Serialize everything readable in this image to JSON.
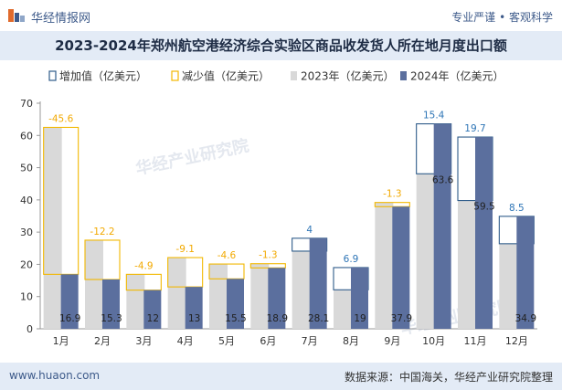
{
  "header": {
    "site_name": "华经情报网",
    "slogan": "专业严谨 • 客观科学"
  },
  "title": "2023-2024年郑州航空港经济综合实验区商品收发货人所在地月度出口额",
  "footer": {
    "url": "www.huaon.com",
    "source": "数据来源：中国海关，华经产业研究院整理"
  },
  "watermark": "华经产业研究院",
  "colors": {
    "increase": "#2f5c8a",
    "decrease": "#f2b800",
    "y2023": "#d9d9d9",
    "y2024": "#5b6f9e",
    "increase_label": "#2e75b6",
    "decrease_label": "#f2a900"
  },
  "chart_data": {
    "type": "bar",
    "categories": [
      "1月",
      "2月",
      "3月",
      "4月",
      "5月",
      "6月",
      "7月",
      "8月",
      "9月",
      "10月",
      "11月",
      "12月"
    ],
    "ylim": [
      0,
      70
    ],
    "yticks": [
      0,
      10,
      20,
      30,
      40,
      50,
      60,
      70
    ],
    "legend": [
      "增加值（亿美元）",
      "减少值（亿美元）",
      "2023年（亿美元）",
      "2024年（亿美元）"
    ],
    "legend_position": "top",
    "grid": false,
    "series": [
      {
        "name": "2023年（亿美元）",
        "values": [
          62.5,
          27.5,
          16.9,
          22.1,
          20.1,
          20.2,
          24.1,
          12.1,
          39.2,
          48.1,
          39.8,
          26.4
        ]
      },
      {
        "name": "2024年（亿美元）",
        "values": [
          16.9,
          15.3,
          12,
          13,
          15.5,
          18.9,
          28.1,
          19,
          37.9,
          63.6,
          59.5,
          34.9
        ]
      }
    ],
    "changes": [
      {
        "type": "decrease",
        "label": "-45.6"
      },
      {
        "type": "decrease",
        "label": "-12.2"
      },
      {
        "type": "decrease",
        "label": "-4.9"
      },
      {
        "type": "decrease",
        "label": "-9.1"
      },
      {
        "type": "decrease",
        "label": "-4.6"
      },
      {
        "type": "decrease",
        "label": "-1.3"
      },
      {
        "type": "increase",
        "label": "4"
      },
      {
        "type": "increase",
        "label": "6.9"
      },
      {
        "type": "decrease",
        "label": "-1.3"
      },
      {
        "type": "increase",
        "label": "15.4"
      },
      {
        "type": "increase",
        "label": "19.7"
      },
      {
        "type": "increase",
        "label": "8.5"
      }
    ],
    "value_labels_2024": [
      "16.9",
      "15.3",
      "12",
      "13",
      "15.5",
      "18.9",
      "28.1",
      "19",
      "37.9",
      "63.6",
      "59.5",
      "34.9"
    ]
  }
}
